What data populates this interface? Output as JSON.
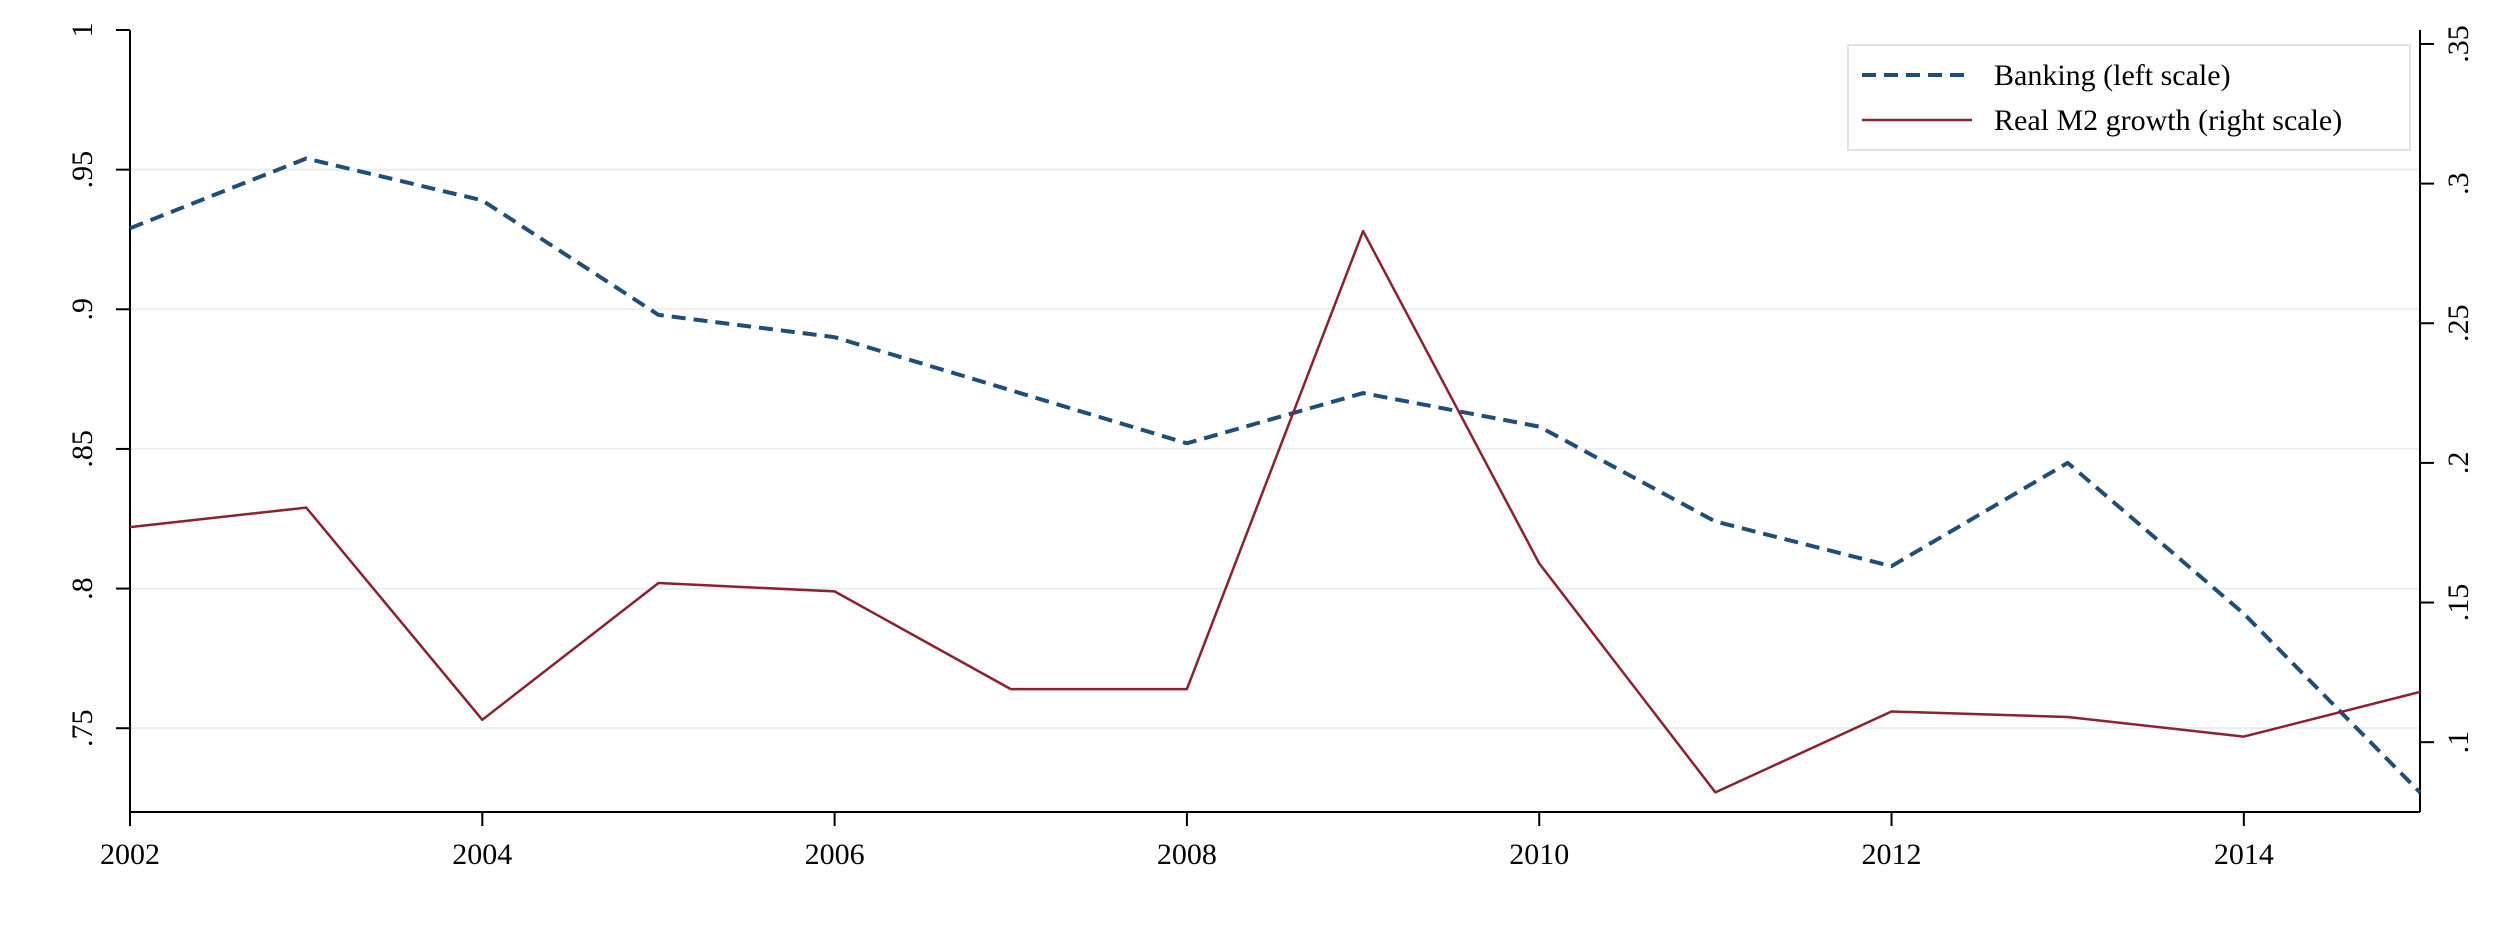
{
  "chart_data": {
    "type": "line",
    "title": "",
    "xlabel": "",
    "ylabel_left": "",
    "ylabel_right": "",
    "x": [
      2002,
      2003,
      2004,
      2005,
      2006,
      2007,
      2008,
      2009,
      2010,
      2011,
      2012,
      2013,
      2014,
      2015
    ],
    "x_ticks": [
      2002,
      2004,
      2006,
      2008,
      2010,
      2012,
      2014
    ],
    "x_tick_labels": [
      "2002",
      "2004",
      "2006",
      "2008",
      "2010",
      "2012",
      "2014"
    ],
    "xlim": [
      2002,
      2015
    ],
    "y_left": {
      "lim": [
        0.72,
        1.0
      ],
      "ticks": [
        0.75,
        0.8,
        0.85,
        0.9,
        0.95,
        1.0
      ],
      "tick_labels": [
        ".75",
        ".8",
        ".85",
        ".9",
        ".95",
        "1"
      ]
    },
    "y_right": {
      "lim": [
        0.075,
        0.355
      ],
      "ticks": [
        0.1,
        0.15,
        0.2,
        0.25,
        0.3,
        0.35
      ],
      "tick_labels": [
        ".1",
        ".15",
        ".2",
        ".25",
        ".3",
        ".35"
      ]
    },
    "grid": true,
    "legend": "top-right",
    "series": [
      {
        "name": "Banking (left scale)",
        "axis": "left",
        "style": "dashed",
        "color": "#1f4e79",
        "values": [
          0.929,
          0.954,
          0.939,
          0.898,
          0.89,
          0.871,
          0.852,
          0.87,
          0.858,
          0.824,
          0.808,
          0.845,
          0.791,
          0.727
        ]
      },
      {
        "name": "Real M2 growth (right scale)",
        "axis": "right",
        "style": "solid",
        "color": "#8b2131",
        "values": [
          0.177,
          0.184,
          0.108,
          0.157,
          0.154,
          0.119,
          0.119,
          0.283,
          0.164,
          0.082,
          0.111,
          0.109,
          0.102,
          0.118
        ]
      }
    ]
  }
}
